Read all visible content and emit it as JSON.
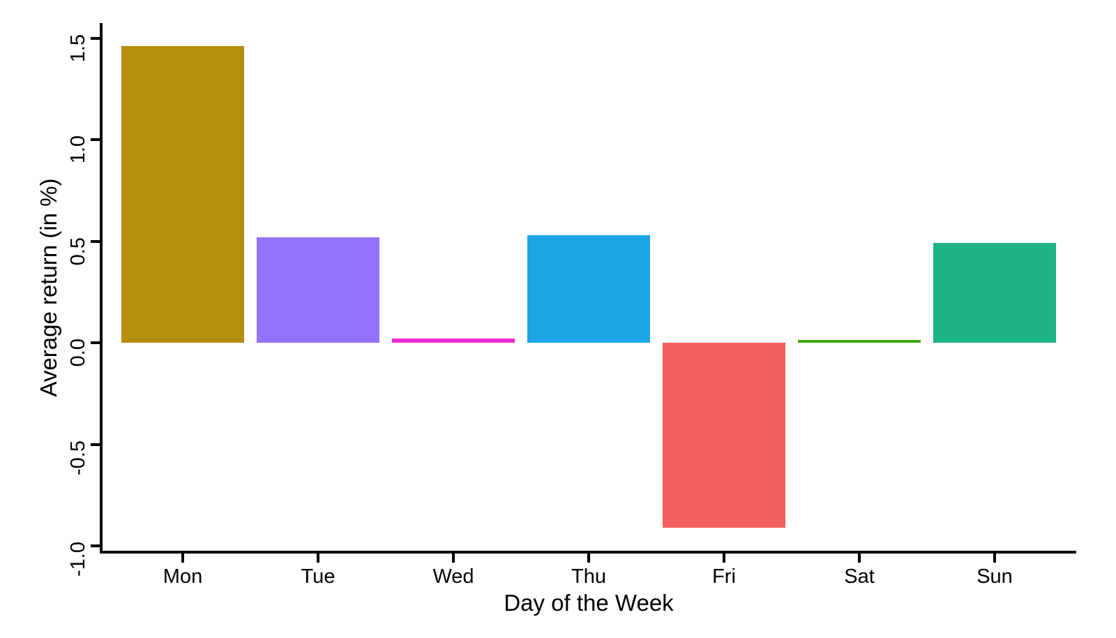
{
  "figure": {
    "background_color": "#ffffff"
  },
  "chart_data": {
    "type": "bar",
    "title": "",
    "xlabel": "Day of the Week",
    "ylabel": "Average return (in %)",
    "categories": [
      "Mon",
      "Tue",
      "Wed",
      "Thu",
      "Fri",
      "Sat",
      "Sun"
    ],
    "values": [
      1.46,
      0.52,
      0.02,
      0.53,
      -0.91,
      0.015,
      0.49
    ],
    "bar_colors": [
      "#b58e0b",
      "#9273fa",
      "#ee2cd1",
      "#1ba6e5",
      "#f45d5b",
      "#41a80d",
      "#1db384"
    ],
    "y_ticks": [
      1.5,
      1.0,
      0.5,
      0.0,
      -0.5,
      -1.0
    ],
    "y_tick_labels": [
      "1.5",
      "1.0",
      "0.5",
      "0.0",
      "-0.5",
      "-1.0"
    ],
    "ylim": [
      -1.04,
      1.57
    ],
    "grid": false,
    "legend_position": "none",
    "axis_color": "#000000",
    "bar_width_fraction": 0.9
  }
}
